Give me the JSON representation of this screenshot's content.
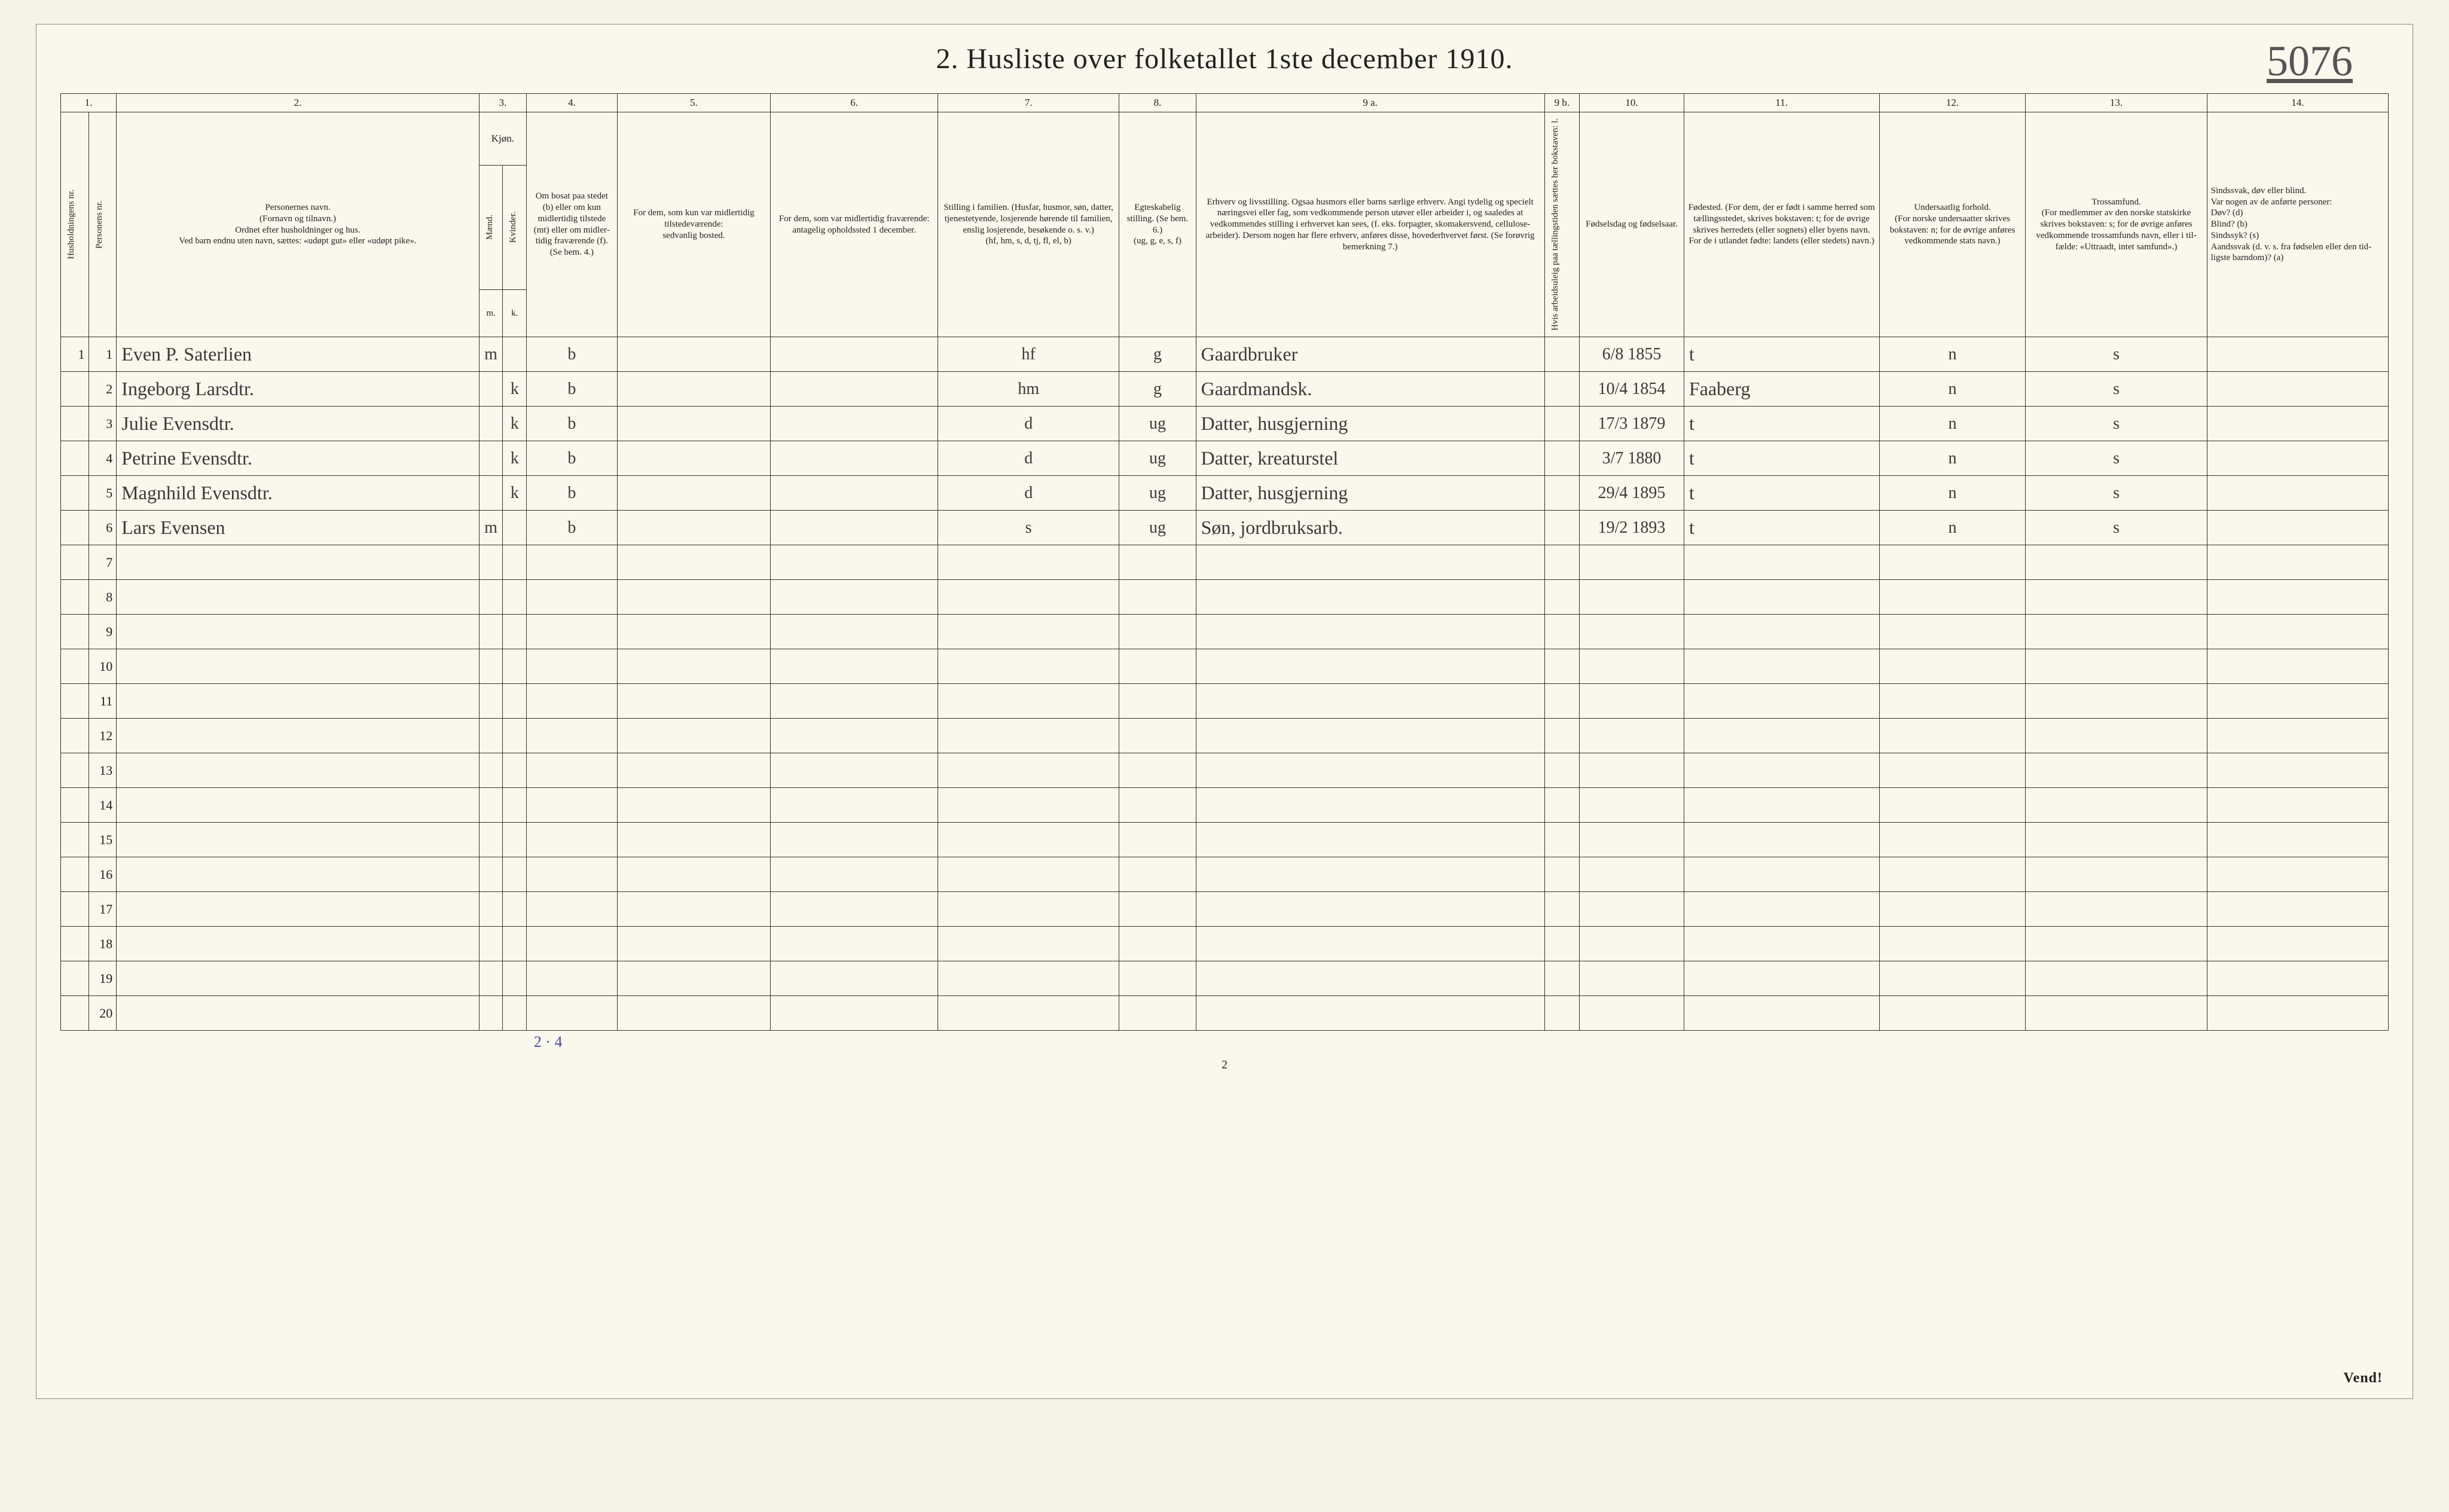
{
  "title": "2.  Husliste over folketallet 1ste december 1910.",
  "sheet_number": "5076",
  "footer_page": "2",
  "footer_right": "Vend!",
  "tally": "2 · 4",
  "columns": {
    "c1": "1.",
    "c2": "2.",
    "c3": "3.",
    "c4": "4.",
    "c5": "5.",
    "c6": "6.",
    "c7": "7.",
    "c8": "8.",
    "c9a": "9 a.",
    "c9b": "9 b.",
    "c10": "10.",
    "c11": "11.",
    "c12": "12.",
    "c13": "13.",
    "c14": "14."
  },
  "headers": {
    "hh_nr": "Husholdningens nr.",
    "pers_nr": "Personens nr.",
    "name": "Personernes navn.\n(Fornavn og tilnavn.)\nOrdnet efter husholdninger og hus.\nVed barn endnu uten navn, sættes: «udøpt gut» eller «udøpt pike».",
    "kjon": "Kjøn.",
    "m": "Mænd.",
    "k": "Kvinder.",
    "m_abbr": "m.",
    "k_abbr": "k.",
    "bosat": "Om bosat paa stedet (b) eller om kun midler­tidig tilstede (mt) eller om midler­tidig fra­værende (f). (Se bem. 4.)",
    "mt": "For dem, som kun var midlertidig tilstede­værende:\nsedvanlig bosted.",
    "frav": "For dem, som var midlertidig fraværende:\nantagelig opholdssted 1 december.",
    "stilling": "Stilling i familien. (Husfar, husmor, søn, datter, tjenestetyende, losjerende hørende til familien, enslig losjerende, besøkende o. s. v.)\n(hf, hm, s, d, tj, fl, el, b)",
    "egte": "Egteska­belig stilling. (Se bem. 6.)\n(ug, g, e, s, f)",
    "erhverv": "Erhverv og livsstilling.\nOgsaa husmors eller barns særlige erhverv. Angi tydelig og specielt næringsvei eller fag, som vedkommende person utøver eller arbeider i, og saaledes at vedkommendes stilling i erhvervet kan sees, (f. eks. forpagter, skomakersvend, cellulose­arbeider). Dersom nogen har flere erhverv, anføres disse, hovederhvervet først. (Se forøvrig bemerkning 7.)",
    "b9b": "Hvis arbeidsuleig paa tællingstiden sættes her bokstaven: l.",
    "fdag": "Fødsels­dag og fødsels­aar.",
    "fsted": "Fødested.\n(For dem, der er født i samme herred som tællingsstedet, skrives bokstaven: t; for de øvrige skrives herredets (eller sognets) eller byens navn. For de i utlandet fødte: landets (eller stedets) navn.)",
    "unders": "Undersaatlig forhold.\n(For norske under­saatter skrives bokstaven: n; for de øvrige anføres vedkom­mende stats navn.)",
    "tros": "Trossamfund.\n(For medlemmer av den norske statskirke skrives bokstaven: s; for de øvrige anføres vedkommende tros­samfunds navn, eller i til­fælde: «Uttraadt, intet samfund».)",
    "sind": "Sindssvak, døv eller blind.\nVar nogen av de anførte personer:\nDøv?      (d)\nBlind?    (b)\nSindssyk? (s)\nAandssvak (d. v. s. fra fødselen eller den tid­ligste barndom)? (a)"
  },
  "persons": [
    {
      "hh": "1",
      "pn": "1",
      "name": "Even P. Saterlien",
      "m": "m",
      "k": "",
      "b": "b",
      "mt": "",
      "frav": "",
      "st": "hf",
      "eg": "g",
      "erhv": "Gaardbruker",
      "fdag": "6/8 1855",
      "fsted": "t",
      "und": "n",
      "tro": "s",
      "sind": ""
    },
    {
      "hh": "",
      "pn": "2",
      "name": "Ingeborg Larsdtr.",
      "m": "",
      "k": "k",
      "b": "b",
      "mt": "",
      "frav": "",
      "st": "hm",
      "eg": "g",
      "erhv": "Gaardmandsk.",
      "fdag": "10/4 1854",
      "fsted": "Faaberg",
      "und": "n",
      "tro": "s",
      "sind": ""
    },
    {
      "hh": "",
      "pn": "3",
      "name": "Julie Evensdtr.",
      "m": "",
      "k": "k",
      "b": "b",
      "mt": "",
      "frav": "",
      "st": "d",
      "eg": "ug",
      "erhv": "Datter, husgjerning",
      "fdag": "17/3 1879",
      "fsted": "t",
      "und": "n",
      "tro": "s",
      "sind": ""
    },
    {
      "hh": "",
      "pn": "4",
      "name": "Petrine Evensdtr.",
      "m": "",
      "k": "k",
      "b": "b",
      "mt": "",
      "frav": "",
      "st": "d",
      "eg": "ug",
      "erhv": "Datter, kreaturstel",
      "fdag": "3/7 1880",
      "fsted": "t",
      "und": "n",
      "tro": "s",
      "sind": ""
    },
    {
      "hh": "",
      "pn": "5",
      "name": "Magnhild Evensdtr.",
      "m": "",
      "k": "k",
      "b": "b",
      "mt": "",
      "frav": "",
      "st": "d",
      "eg": "ug",
      "erhv": "Datter, husgjerning",
      "fdag": "29/4 1895",
      "fsted": "t",
      "und": "n",
      "tro": "s",
      "sind": ""
    },
    {
      "hh": "",
      "pn": "6",
      "name": "Lars Evensen",
      "m": "m",
      "k": "",
      "b": "b",
      "mt": "",
      "frav": "",
      "st": "s",
      "eg": "ug",
      "erhv": "Søn, jordbruksarb.",
      "fdag": "19/2 1893",
      "fsted": "t",
      "und": "n",
      "tro": "s",
      "sind": ""
    }
  ],
  "empty_rows": [
    "7",
    "8",
    "9",
    "10",
    "11",
    "12",
    "13",
    "14",
    "15",
    "16",
    "17",
    "18",
    "19",
    "20"
  ]
}
